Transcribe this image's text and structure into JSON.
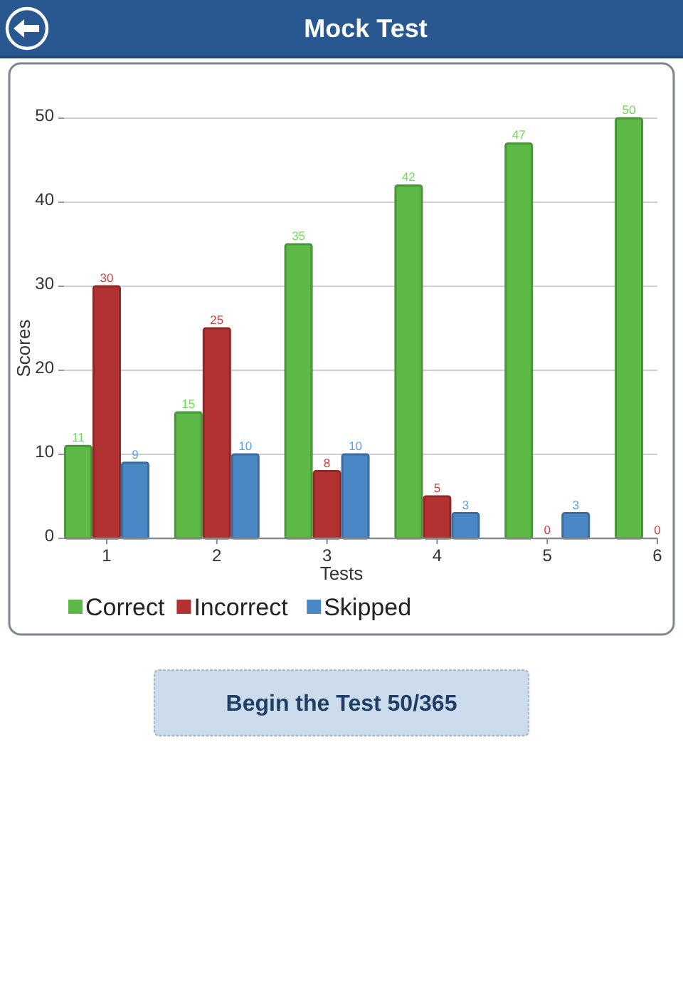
{
  "chart_data": {
    "type": "bar",
    "title": "Mock Test",
    "categories": [
      "1",
      "2",
      "3",
      "4",
      "5",
      "6"
    ],
    "series": [
      {
        "name": "Correct",
        "color": "#5cb946",
        "values": [
          11,
          15,
          35,
          42,
          47,
          50
        ]
      },
      {
        "name": "Incorrect",
        "color": "#b23232",
        "values": [
          30,
          25,
          8,
          5,
          0,
          0
        ]
      },
      {
        "name": "Skipped",
        "color": "#4a87c5",
        "values": [
          9,
          10,
          10,
          3,
          3,
          null
        ]
      }
    ],
    "xlabel": "Tests",
    "ylabel": "Scores",
    "ylim": [
      0,
      50
    ],
    "yticks": [
      0,
      10,
      20,
      30,
      40,
      50
    ],
    "grid": "y",
    "legend": "bottom",
    "data_labels": true,
    "annotations": [
      "Begin the Test 50/365"
    ]
  }
}
